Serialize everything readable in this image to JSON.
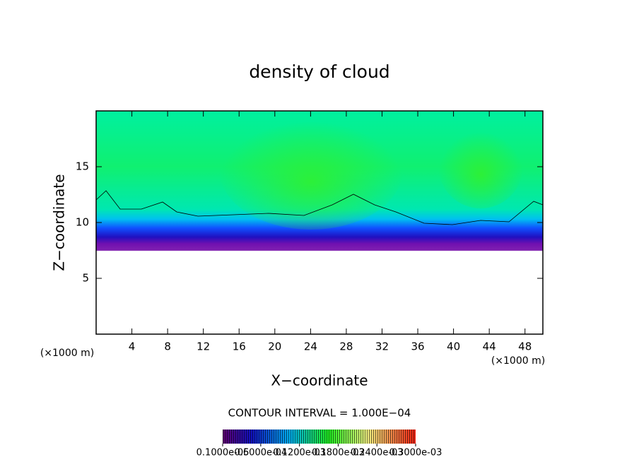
{
  "chart_data": {
    "type": "heatmap",
    "title": "density of cloud",
    "x_label": "X−coordinate",
    "y_label": "Z−coordinate",
    "x_unit": "(×1000 m)",
    "y_unit": "(×1000 m)",
    "xlim": [
      0,
      50
    ],
    "xticks": [
      4,
      8,
      12,
      16,
      20,
      24,
      28,
      32,
      36,
      40,
      44,
      48
    ],
    "ylim": [
      0,
      20
    ],
    "yticks": [
      5,
      10,
      15
    ],
    "note": "CONTOUR INTERVAL = 1.000E−04",
    "colorbar": {
      "lim": [
        1e-06,
        0.0003
      ],
      "ticks": [
        {
          "value": 1e-06,
          "label": "0.1000e-05"
        },
        {
          "value": 6e-05,
          "label": "0.6000e-04"
        },
        {
          "value": 0.00012,
          "label": "0.1200e-03"
        },
        {
          "value": 0.00018,
          "label": "0.1800e-03"
        },
        {
          "value": 0.00024,
          "label": "0.2400e-03"
        },
        {
          "value": 0.0003,
          "label": "0.3000e-03"
        }
      ]
    }
  }
}
